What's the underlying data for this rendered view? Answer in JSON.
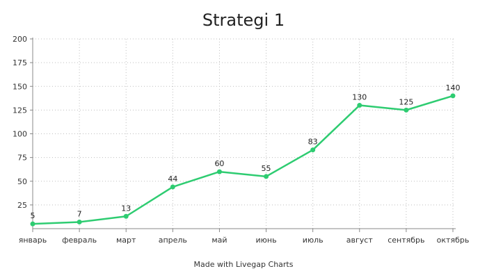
{
  "chart_data": {
    "type": "line",
    "title": "Strategi 1",
    "xlabel": "",
    "ylabel": "",
    "categories": [
      "январь",
      "февраль",
      "март",
      "апрель",
      "май",
      "июнь",
      "июль",
      "август",
      "сентябрь",
      "октябрь"
    ],
    "series": [
      {
        "values": [
          5,
          7,
          13,
          44,
          60,
          55,
          83,
          130,
          125,
          140
        ],
        "color": "#2ecc71"
      }
    ],
    "ylim": [
      0,
      200
    ],
    "yticks": [
      25,
      50,
      75,
      100,
      125,
      150,
      175,
      200
    ],
    "grid": true,
    "data_labels": true
  },
  "footer": "Made with Livegap Charts"
}
